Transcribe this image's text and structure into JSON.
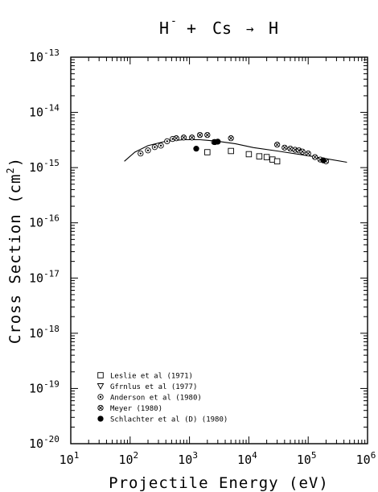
{
  "chart_data": {
    "type": "scatter",
    "title": {
      "projectile": "H",
      "projectile_charge": "-",
      "operator": "+",
      "target": "Cs",
      "arrow": "→",
      "product": "H"
    },
    "xlabel": "Projectile Energy (eV)",
    "ylabel": {
      "text": "Cross Section (cm",
      "sup": "2",
      "close": ")"
    },
    "xscale": "log",
    "yscale": "log",
    "xlim": [
      10,
      1000000
    ],
    "ylim": [
      1e-20,
      1e-13
    ],
    "x_ticks": [
      {
        "base": "10",
        "exp": "1",
        "value": 10
      },
      {
        "base": "10",
        "exp": "2",
        "value": 100
      },
      {
        "base": "10",
        "exp": "3",
        "value": 1000
      },
      {
        "base": "10",
        "exp": "4",
        "value": 10000
      },
      {
        "base": "10",
        "exp": "5",
        "value": 100000
      },
      {
        "base": "10",
        "exp": "6",
        "value": 1000000
      }
    ],
    "y_ticks": [
      {
        "base": "10",
        "exp": "-20",
        "value": 1e-20
      },
      {
        "base": "10",
        "exp": "-19",
        "value": 1e-19
      },
      {
        "base": "10",
        "exp": "-18",
        "value": 1e-18
      },
      {
        "base": "10",
        "exp": "-17",
        "value": 1e-17
      },
      {
        "base": "10",
        "exp": "-16",
        "value": 1e-16
      },
      {
        "base": "10",
        "exp": "-15",
        "value": 1e-15
      },
      {
        "base": "10",
        "exp": "-14",
        "value": 1e-14
      },
      {
        "base": "10",
        "exp": "-13",
        "value": 1e-13
      }
    ],
    "grid": false,
    "legend_position": "bottom-left",
    "series": [
      {
        "name": "Leslie et al (1971)",
        "marker": "open-square",
        "x": [
          2000,
          5000,
          10000,
          15000,
          20000,
          25000,
          30000
        ],
        "y": [
          1.9e-15,
          2e-15,
          1.75e-15,
          1.6e-15,
          1.55e-15,
          1.4e-15,
          1.3e-15
        ]
      },
      {
        "name": "Gfrnlus et al (1977)",
        "marker": "open-triangle-down",
        "x": [],
        "y": []
      },
      {
        "name": "Anderson et al (1980)",
        "marker": "circle-dot",
        "x": [
          150,
          200,
          260,
          330,
          420,
          520
        ],
        "y": [
          1.8e-15,
          2.05e-15,
          2.35e-15,
          2.5e-15,
          3e-15,
          3.3e-15
        ]
      },
      {
        "name": "Meyer (1980)",
        "marker": "circle-cross",
        "x": [
          600,
          800,
          1100,
          1500,
          2000,
          2600,
          5000,
          30000,
          40000,
          50000,
          60000,
          70000,
          80000,
          100000,
          130000,
          160000,
          200000
        ],
        "y": [
          3.4e-15,
          3.5e-15,
          3.5e-15,
          3.9e-15,
          3.9e-15,
          2.9e-15,
          3.4e-15,
          2.6e-15,
          2.3e-15,
          2.2e-15,
          2.1e-15,
          2.05e-15,
          1.95e-15,
          1.8e-15,
          1.55e-15,
          1.4e-15,
          1.3e-15
        ]
      },
      {
        "name": "Schlachter et al (D) (1980)",
        "marker": "filled-circle",
        "x": [
          1300,
          2700,
          3000,
          180000
        ],
        "y": [
          2.2e-15,
          2.9e-15,
          2.95e-15,
          1.35e-15
        ]
      }
    ],
    "curve": {
      "x": [
        80,
        120,
        200,
        400,
        800,
        1500,
        3000,
        6000,
        12000,
        30000,
        80000,
        200000,
        450000
      ],
      "y": [
        1.3e-15,
        1.9e-15,
        2.5e-15,
        3e-15,
        3.2e-15,
        3.2e-15,
        3e-15,
        2.7e-15,
        2.3e-15,
        2e-15,
        1.7e-15,
        1.45e-15,
        1.25e-15
      ]
    }
  }
}
